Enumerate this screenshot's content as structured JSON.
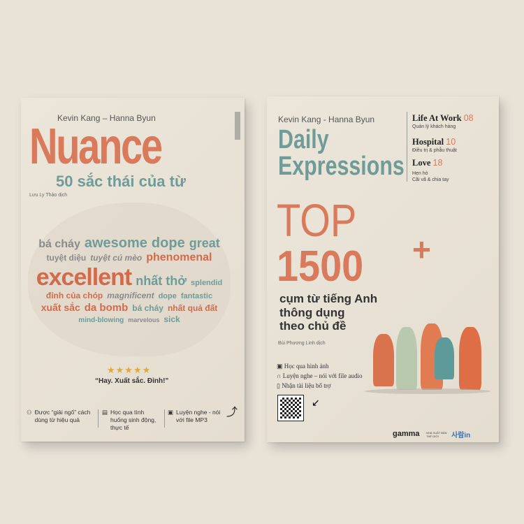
{
  "book1": {
    "authors": "Kevin Kang – Hanna Byun",
    "title": "Nuance",
    "subtitle": "50 sắc thái của từ",
    "translator": "Lưu Ly Thảo dịch",
    "cloud_words": [
      "bá cháy",
      "awesome",
      "dope",
      "great",
      "tuyệt diệu",
      "tuyệt cú mèo",
      "phenomenal",
      "excellent",
      "nhất thở",
      "splendid",
      "đỉnh của chóp",
      "magnificent",
      "dope",
      "fantastic",
      "xuất sắc",
      "da bomb",
      "bá cháy",
      "nhất quả đất",
      "mind-blowing",
      "marvelous",
      "sick"
    ],
    "stars": "★★★★★",
    "quote": "“Hay. Xuất sắc. Đỉnh!”",
    "features": [
      {
        "icon": "person-book-icon",
        "text": "Được “giải ngố” cách dùng từ hiệu quả"
      },
      {
        "icon": "book-icon",
        "text": "Học qua tình huống sinh động, thực tế"
      },
      {
        "icon": "audio-file-icon",
        "text": "Luyện nghe - nói với file MP3"
      }
    ]
  },
  "book2": {
    "authors": "Kevin Kang - Hanna Byun",
    "title_line1": "Daily",
    "title_line2": "Expressions",
    "top": "TOP",
    "number": "1500",
    "plus": "+",
    "tagline": [
      "cụm từ tiếng Anh",
      "thông dụng",
      "theo chủ đề"
    ],
    "translator": "Bùi Phương Linh dịch",
    "topics": [
      {
        "name": "Life At Work",
        "page": "08",
        "subs": [
          "Quản lý khách hàng"
        ]
      },
      {
        "name": "Hospital",
        "page": "10",
        "subs": [
          "Điều trị & phẫu thuật"
        ]
      },
      {
        "name": "Love",
        "page": "18",
        "subs": [
          "Hẹn hò",
          "Cãi vã & chia tay"
        ]
      }
    ],
    "features": [
      "Học qua hình ảnh",
      "Luyện nghe – nói với file audio",
      "Nhận tài liệu bổ trợ"
    ],
    "publishers": [
      "gamma",
      "NHÀ XUẤT BẢN THẾ GIỚI",
      "사람in"
    ]
  },
  "colors": {
    "accent_orange": "#d97a5c",
    "accent_teal": "#6f9b98",
    "background": "#e8e2d7"
  }
}
